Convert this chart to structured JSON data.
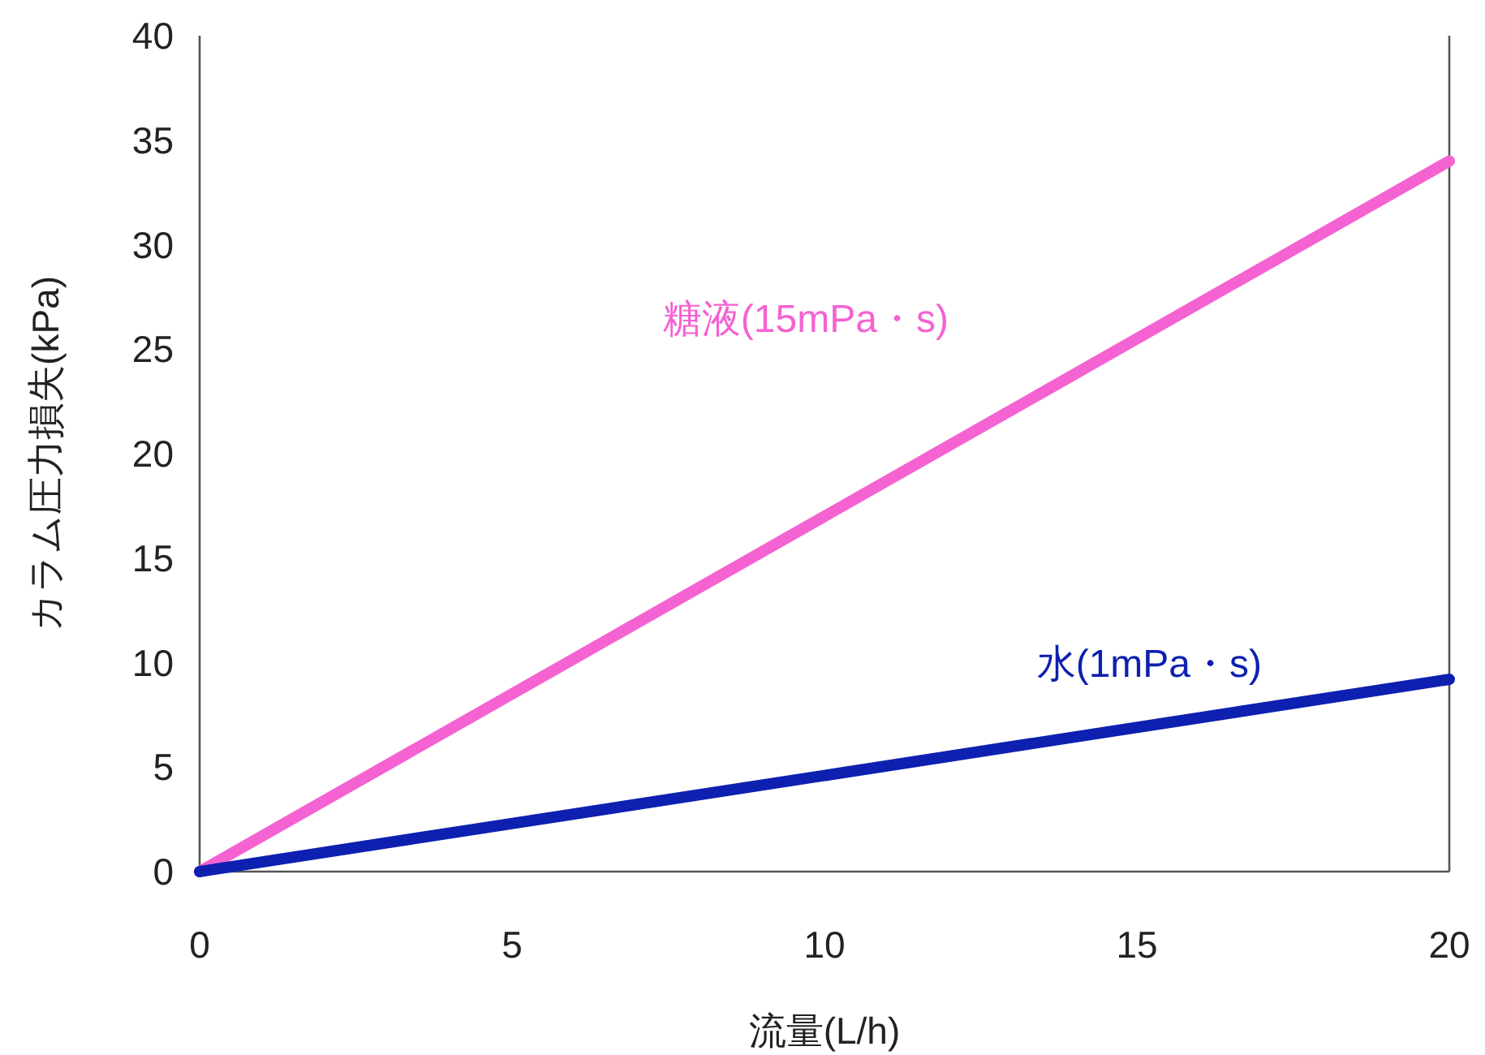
{
  "chart_data": {
    "type": "line",
    "xlabel": "流量(L/h)",
    "ylabel": "カラム圧力損失(kPa)",
    "x": [
      0,
      20
    ],
    "series": [
      {
        "name": "糖液(15mPa・s)",
        "color": "#f562d2",
        "values": [
          0,
          34
        ]
      },
      {
        "name": "水(1mPa・s)",
        "color": "#0d20b0",
        "values": [
          0,
          9.2
        ]
      }
    ],
    "xlim": [
      0,
      20
    ],
    "xticks": [
      0,
      5,
      10,
      15,
      20
    ],
    "ylim": [
      0,
      40
    ],
    "yticks": [
      0,
      5,
      10,
      15,
      20,
      25,
      30,
      35,
      40
    ],
    "grid": false,
    "marker": "none",
    "line_style": "solid"
  }
}
